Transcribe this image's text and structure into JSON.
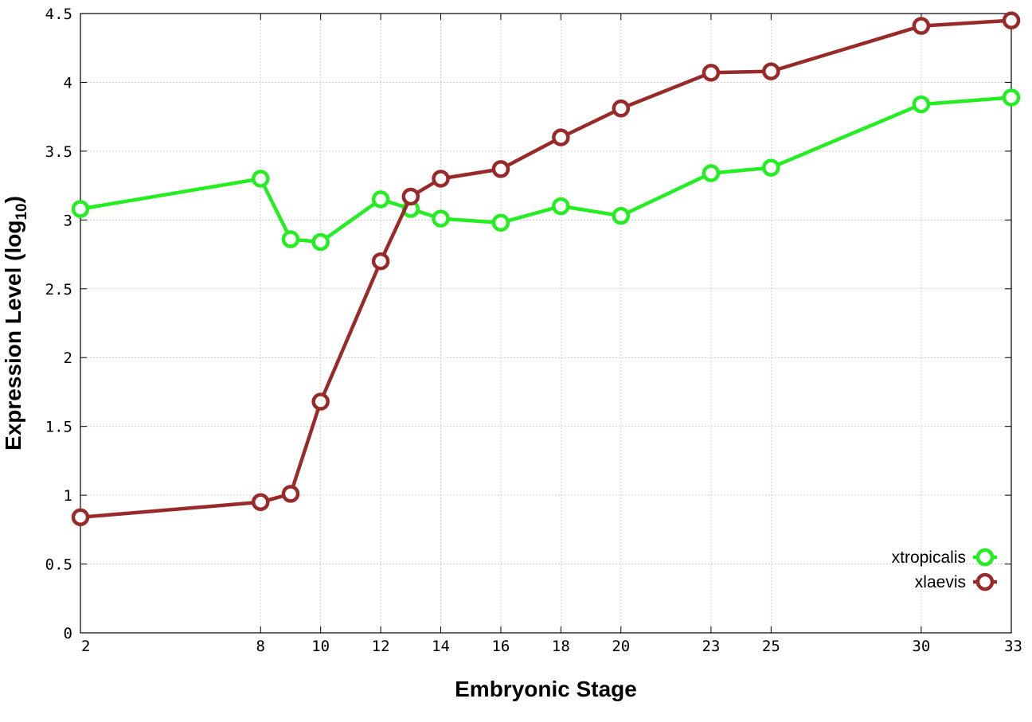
{
  "chart_data": {
    "type": "line",
    "xlabel": "Embryonic Stage",
    "ylabel_main": "Expression Level (log",
    "ylabel_sub": "10",
    "ylabel_close": ")",
    "ylim": [
      0,
      4.5
    ],
    "yticks": [
      0,
      0.5,
      1,
      1.5,
      2,
      2.5,
      3,
      3.5,
      4,
      4.5
    ],
    "ytick_labels": [
      "0",
      "0.5",
      "1",
      "1.5",
      "2",
      "2.5",
      "3",
      "3.5",
      "4",
      "4.5"
    ],
    "x": [
      2,
      8,
      9,
      10,
      12,
      13,
      14,
      16,
      18,
      20,
      23,
      25,
      30,
      33
    ],
    "xtick_values": [
      2,
      8,
      10,
      12,
      14,
      16,
      18,
      20,
      23,
      25,
      30,
      33
    ],
    "xtick_labels": [
      "2",
      "8",
      "10",
      "12",
      "14",
      "16",
      "18",
      "20",
      "23",
      "25",
      "30",
      "33"
    ],
    "grid": true,
    "legend_position": "bottom-right",
    "series": [
      {
        "name": "xtropicalis",
        "color": "#22ee22",
        "values": [
          3.08,
          3.3,
          2.86,
          2.84,
          3.15,
          3.08,
          3.01,
          2.98,
          3.1,
          3.03,
          3.34,
          3.38,
          3.84,
          3.89
        ]
      },
      {
        "name": "xlaevis",
        "color": "#992a2a",
        "values": [
          0.84,
          0.95,
          1.01,
          1.68,
          2.7,
          3.17,
          3.3,
          3.37,
          3.6,
          3.81,
          4.07,
          4.08,
          4.41,
          4.45
        ]
      }
    ]
  }
}
